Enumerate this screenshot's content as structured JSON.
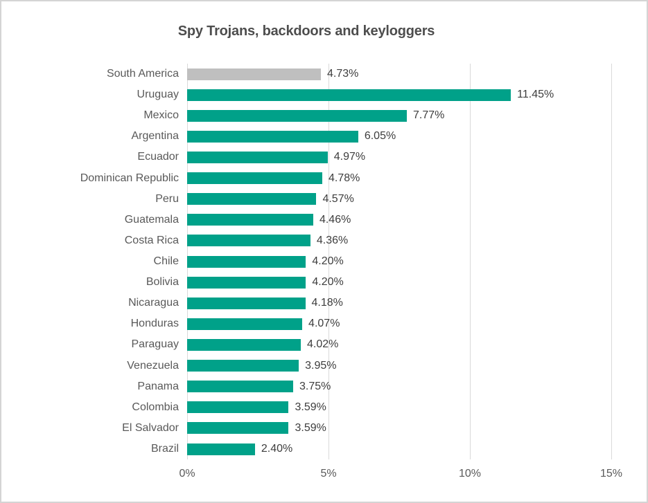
{
  "window": {
    "background": "#ffffff",
    "border_color": "#d4d4d4"
  },
  "chart_data": {
    "type": "bar",
    "orientation": "horizontal",
    "title": "Spy Trojans, backdoors and keyloggers",
    "categories": [
      "South America",
      "Uruguay",
      "Mexico",
      "Argentina",
      "Ecuador",
      "Dominican Republic",
      "Peru",
      "Guatemala",
      "Costa Rica",
      "Chile",
      "Bolivia",
      "Nicaragua",
      "Honduras",
      "Paraguay",
      "Venezuela",
      "Panama",
      "Colombia",
      "El Salvador",
      "Brazil"
    ],
    "values": [
      4.73,
      11.45,
      7.77,
      6.05,
      4.97,
      4.78,
      4.57,
      4.46,
      4.36,
      4.2,
      4.2,
      4.18,
      4.07,
      4.02,
      3.95,
      3.75,
      3.59,
      3.59,
      2.4
    ],
    "value_labels": [
      "4.73%",
      "11.45%",
      "7.77%",
      "6.05%",
      "4.97%",
      "4.78%",
      "4.57%",
      "4.46%",
      "4.36%",
      "4.20%",
      "4.20%",
      "4.18%",
      "4.07%",
      "4.02%",
      "3.95%",
      "3.75%",
      "3.59%",
      "3.59%",
      "2.40%"
    ],
    "highlighted_category": "South America",
    "xlabel": "",
    "ylabel": "",
    "xlim": [
      0,
      15
    ],
    "x_ticks": [
      {
        "value": 0,
        "label": "0%"
      },
      {
        "value": 5,
        "label": "5%"
      },
      {
        "value": 10,
        "label": "10%"
      },
      {
        "value": 15,
        "label": "15%"
      }
    ],
    "grid": "vertical",
    "legend": "none",
    "colors": {
      "bar": "#00A189",
      "highlight_bar": "#BFBFBF",
      "gridline": "#D9D9D9",
      "title_text": "#4D4D4D",
      "category_text": "#595959",
      "value_text": "#3D3D3D",
      "axis_text": "#595959"
    }
  }
}
